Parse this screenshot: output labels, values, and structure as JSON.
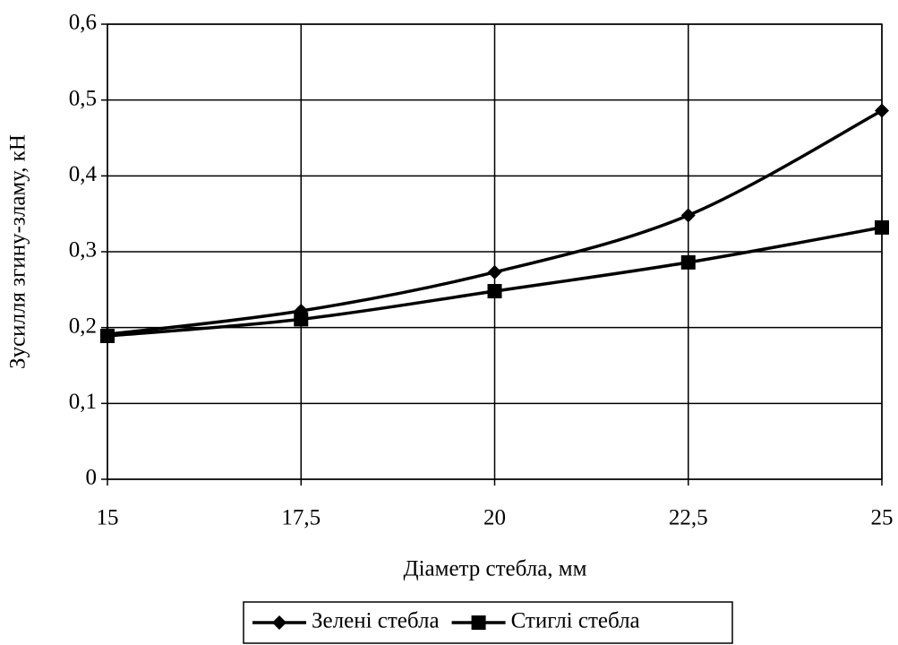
{
  "chart_data": {
    "type": "line",
    "x_label": "Діаметр стебла, мм",
    "y_label": "Зусилля згину-зламу, кН",
    "x": [
      15,
      17.5,
      20,
      22.5,
      25
    ],
    "series": [
      {
        "name": "Зелені стебла",
        "color": "#000000",
        "marker": "diamond",
        "values": [
          0.191,
          0.222,
          0.273,
          0.348,
          0.486
        ]
      },
      {
        "name": "Стиглі стебла",
        "color": "#000000",
        "marker": "square",
        "values": [
          0.189,
          0.211,
          0.248,
          0.286,
          0.332
        ]
      }
    ],
    "xlim": [
      15,
      25
    ],
    "xticks": [
      15,
      {
        "value": 17.5,
        "label": "17,5"
      },
      20,
      {
        "value": 22.5,
        "label": "22,5"
      },
      25
    ],
    "ylim": [
      0,
      0.6
    ],
    "yticks": [
      0,
      {
        "value": 0.1,
        "label": "0,1"
      },
      {
        "value": 0.2,
        "label": "0,2"
      },
      {
        "value": 0.3,
        "label": "0,3"
      },
      {
        "value": 0.4,
        "label": "0,4"
      },
      {
        "value": 0.5,
        "label": "0,5"
      },
      {
        "value": 0.6,
        "label": "0,6"
      }
    ],
    "grid": true,
    "legend": "bottom"
  }
}
